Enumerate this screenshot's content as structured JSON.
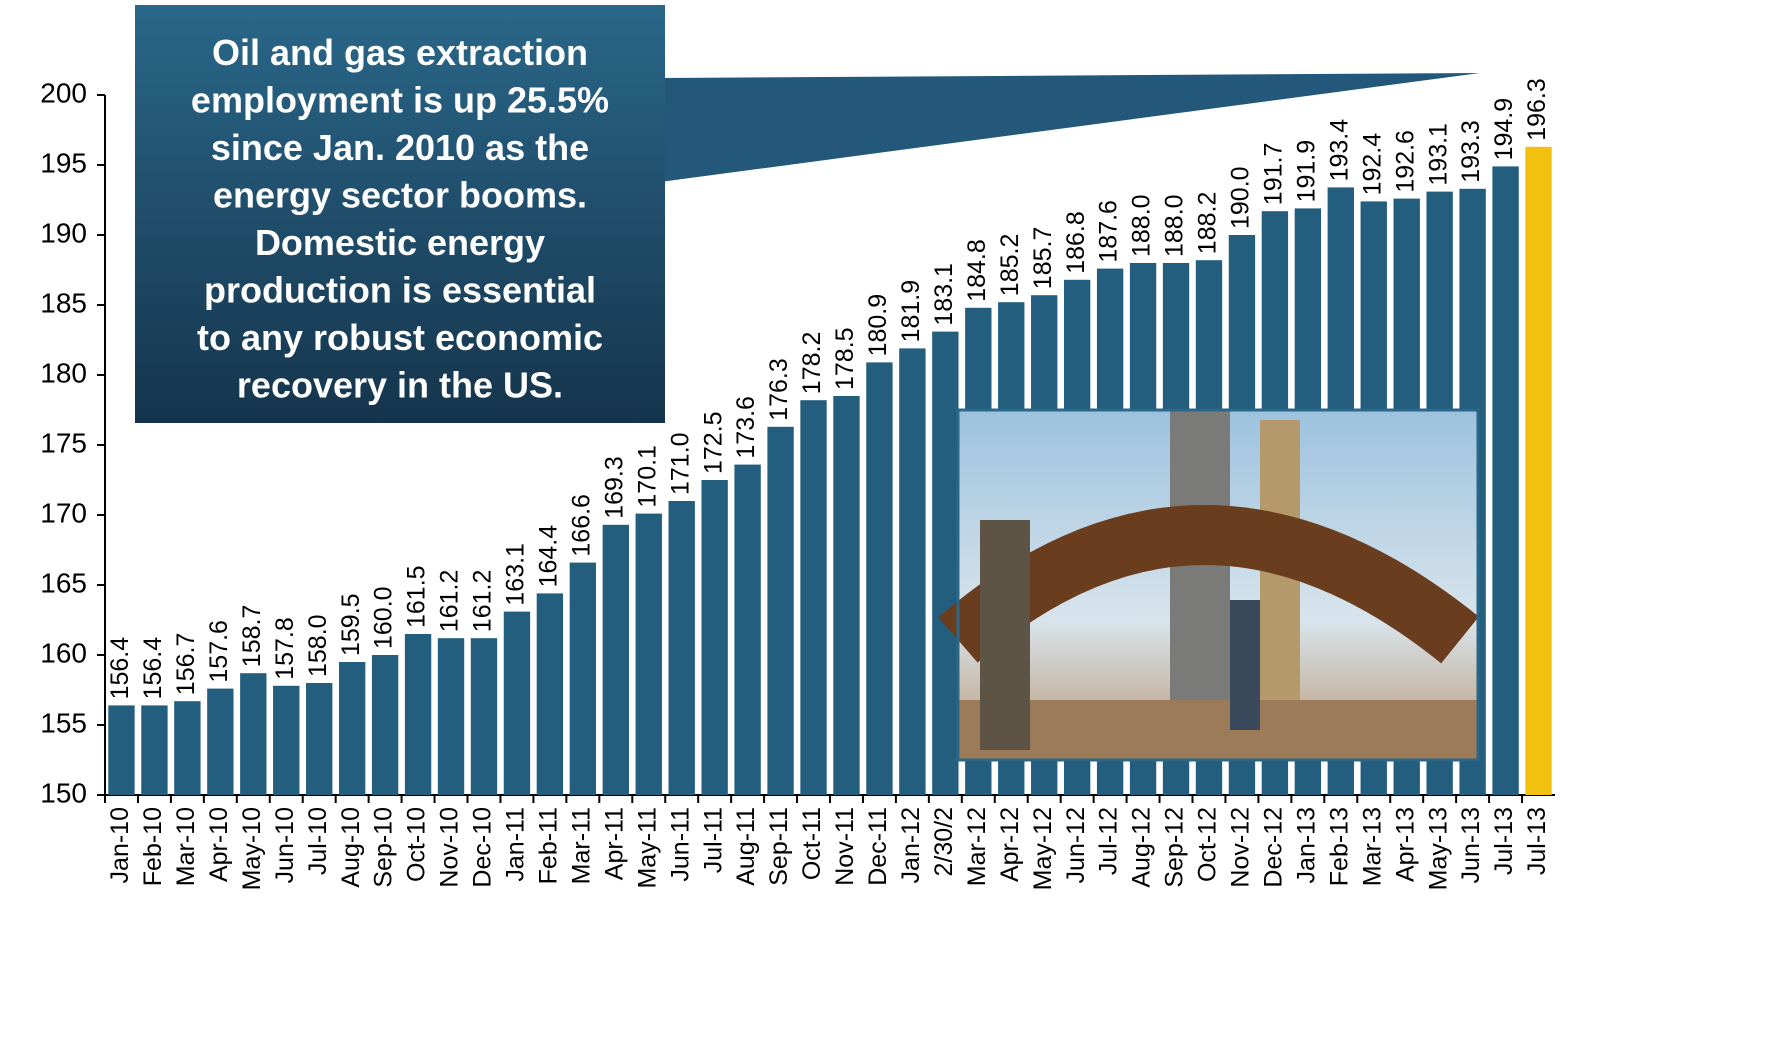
{
  "chart_data": {
    "type": "bar",
    "annotation": [
      "Oil and gas extraction",
      "employment is up 25.5%",
      "since Jan. 2010 as the",
      "energy sector booms.",
      "Domestic energy",
      "production is essential",
      "to any robust economic",
      "recovery in the US."
    ],
    "categories": [
      "Jan-10",
      "Feb-10",
      "Mar-10",
      "Apr-10",
      "May-10",
      "Jun-10",
      "Jul-10",
      "Aug-10",
      "Sep-10",
      "Oct-10",
      "Nov-10",
      "Dec-10",
      "Jan-11",
      "Feb-11",
      "Mar-11",
      "Apr-11",
      "May-11",
      "Jun-11",
      "Jul-11",
      "Aug-11",
      "Sep-11",
      "Oct-11",
      "Nov-11",
      "Dec-11",
      "Jan-12",
      "2/30/2",
      "Mar-12",
      "Apr-12",
      "May-12",
      "Jun-12",
      "Jul-12",
      "Aug-12",
      "Sep-12",
      "Oct-12",
      "Nov-12",
      "Dec-12",
      "Jan-13",
      "Feb-13",
      "Mar-13",
      "Apr-13",
      "May-13",
      "Jun-13",
      "Jul-13",
      "Jul-13"
    ],
    "values": [
      156.4,
      156.4,
      156.7,
      157.6,
      158.7,
      157.8,
      158.0,
      159.5,
      160.0,
      161.5,
      161.2,
      161.2,
      163.1,
      164.4,
      166.6,
      169.3,
      170.1,
      171.0,
      172.5,
      173.6,
      176.3,
      178.2,
      178.5,
      180.9,
      181.9,
      183.1,
      184.8,
      185.2,
      185.7,
      186.8,
      187.6,
      188.0,
      188.0,
      188.2,
      190.0,
      191.7,
      191.9,
      193.4,
      192.4,
      192.6,
      193.1,
      193.3,
      194.9,
      196.3
    ],
    "value_labels": [
      "156.4",
      "156.4",
      "156.7",
      "157.6",
      "158.7",
      "157.8",
      "158.0",
      "159.5",
      "160.0",
      "161.5",
      "161.2",
      "161.2",
      "163.1",
      "164.4",
      "166.6",
      "169.3",
      "170.1",
      "171.0",
      "172.5",
      "173.6",
      "176.3",
      "178.2",
      "178.5",
      "180.9",
      "181.9",
      "183.1",
      "184.8",
      "185.2",
      "185.7",
      "186.8",
      "187.6",
      "188.0",
      "188.0",
      "188.2",
      "190.0",
      "191.7",
      "191.9",
      "193.4",
      "192.4",
      "192.6",
      "193.1",
      "193.3",
      "194.9",
      "196.3"
    ],
    "colors": [
      "#245e7f",
      "#245e7f",
      "#245e7f",
      "#245e7f",
      "#245e7f",
      "#245e7f",
      "#245e7f",
      "#245e7f",
      "#245e7f",
      "#245e7f",
      "#245e7f",
      "#245e7f",
      "#245e7f",
      "#245e7f",
      "#245e7f",
      "#245e7f",
      "#245e7f",
      "#245e7f",
      "#245e7f",
      "#245e7f",
      "#245e7f",
      "#245e7f",
      "#245e7f",
      "#245e7f",
      "#245e7f",
      "#245e7f",
      "#245e7f",
      "#245e7f",
      "#245e7f",
      "#245e7f",
      "#245e7f",
      "#245e7f",
      "#245e7f",
      "#245e7f",
      "#245e7f",
      "#245e7f",
      "#245e7f",
      "#245e7f",
      "#245e7f",
      "#245e7f",
      "#245e7f",
      "#245e7f",
      "#245e7f",
      "#f2c10f"
    ],
    "ylim": [
      150,
      200
    ],
    "yticks": [
      150,
      155,
      160,
      165,
      170,
      175,
      180,
      185,
      190,
      195,
      200
    ]
  }
}
